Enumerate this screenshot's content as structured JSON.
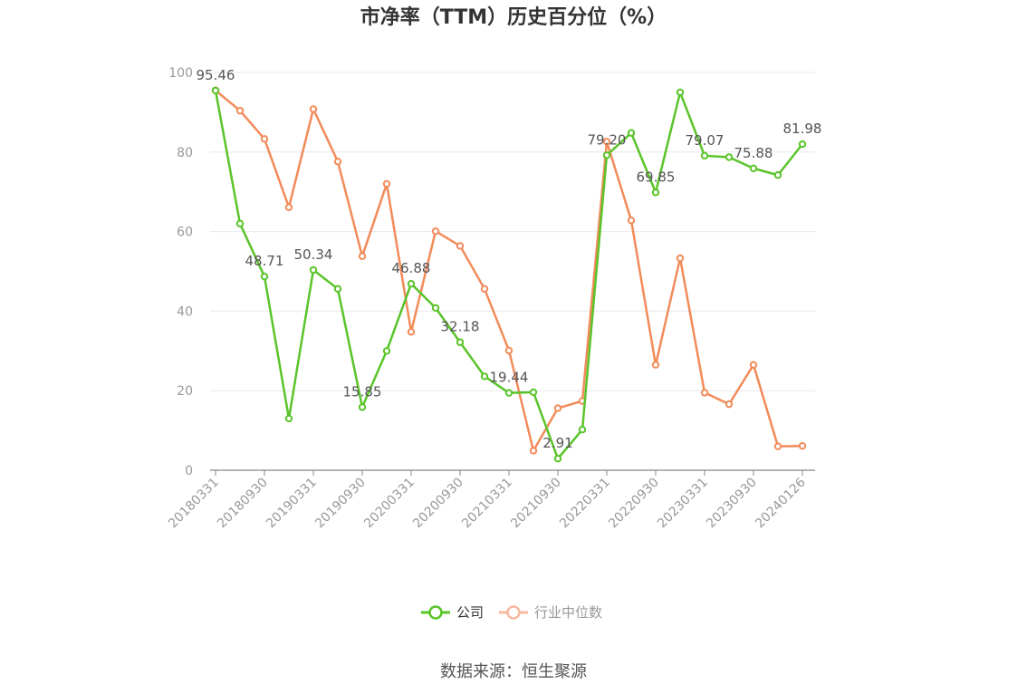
{
  "title": "市净率（TTM）历史百分位（%）",
  "source": "数据来源：恒生聚源",
  "colors": {
    "company": "#5ac42a",
    "industry": "#f28b5a",
    "industry_legend": "#f7b9a0",
    "axis": "#999999",
    "grid": "#e8e8f0"
  },
  "chart_data": {
    "type": "line",
    "ylim": [
      0,
      100
    ],
    "yticks": [
      0,
      20,
      40,
      60,
      80,
      100
    ],
    "grid": true,
    "legend": "bottom-center",
    "x": [
      "20180331",
      "20180630",
      "20180930",
      "20181231",
      "20190331",
      "20190630",
      "20190930",
      "20191231",
      "20200331",
      "20200630",
      "20200930",
      "20201231",
      "20210331",
      "20210630",
      "20210930",
      "20211231",
      "20220331",
      "20220630",
      "20220930",
      "20221231",
      "20230331",
      "20230630",
      "20230930",
      "20231231",
      "20240126"
    ],
    "xtick_labels": [
      "20180331",
      "20180930",
      "20190331",
      "20190930",
      "20200331",
      "20200930",
      "20210331",
      "20210930",
      "20220331",
      "20220930",
      "20230331",
      "20230930",
      "20240126"
    ],
    "series": [
      {
        "name": "公司",
        "values": [
          95.46,
          62,
          48.71,
          13,
          50.34,
          45.6,
          15.85,
          30,
          46.88,
          40.8,
          32.18,
          23.6,
          19.44,
          19.6,
          2.91,
          10.2,
          79.2,
          84.8,
          69.85,
          95.0,
          79.07,
          78.7,
          75.88,
          74.2,
          81.98
        ],
        "labels": [
          "95.46",
          "",
          "48.71",
          "",
          "50.34",
          "",
          "15.85",
          "",
          "46.88",
          "",
          "32.18",
          "",
          "19.44",
          "",
          "2.91",
          "",
          "79.20",
          "",
          "69.85",
          "",
          "79.07",
          "",
          "75.88",
          "",
          "81.98"
        ]
      },
      {
        "name": "行业中位数",
        "values": [
          95.5,
          90.4,
          83.3,
          66.1,
          90.8,
          77.6,
          53.8,
          72.0,
          34.8,
          60.1,
          56.4,
          45.6,
          30.1,
          4.9,
          15.6,
          17.4,
          82.6,
          62.8,
          26.5,
          53.3,
          19.5,
          16.6,
          26.5,
          6.0,
          6.1
        ]
      }
    ]
  }
}
